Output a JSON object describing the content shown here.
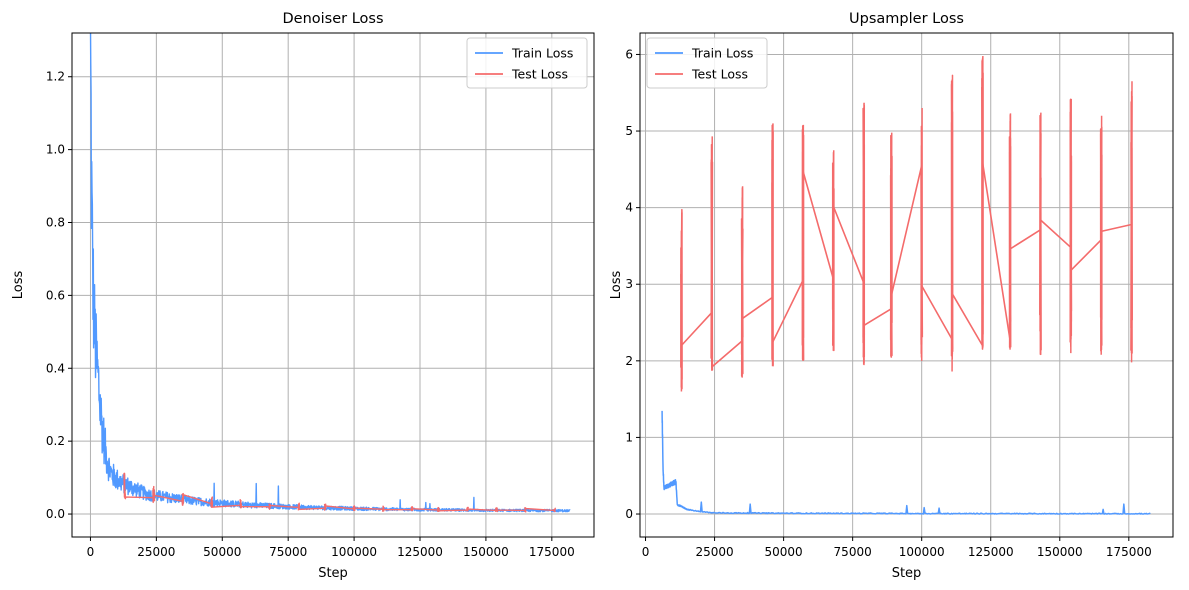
{
  "colors": {
    "train": "#5199ff",
    "test": "#f46b6b",
    "grid": "#b0b0b0"
  },
  "chart_data": [
    {
      "type": "line",
      "title": "Denoiser Loss",
      "xlabel": "Step",
      "ylabel": "Loss",
      "xlim": [
        -7000,
        191000
      ],
      "ylim": [
        -0.063,
        1.32
      ],
      "xticks": [
        0,
        25000,
        50000,
        75000,
        100000,
        125000,
        150000,
        175000
      ],
      "xtick_labels": [
        "0",
        "25000",
        "50000",
        "75000",
        "100000",
        "125000",
        "150000",
        "175000"
      ],
      "yticks": [
        0.0,
        0.2,
        0.4,
        0.6,
        0.8,
        1.0,
        1.2
      ],
      "ytick_labels": [
        "0.0",
        "0.2",
        "0.4",
        "0.6",
        "0.8",
        "1.0",
        "1.2"
      ],
      "grid": true,
      "legend": "top-right",
      "series": [
        {
          "name": "Train Loss",
          "color": "#5199ff",
          "x": [
            0,
            300,
            600,
            1000,
            1500,
            2000,
            3000,
            4000,
            5000,
            6000,
            7000,
            8000,
            10000,
            12000,
            15000,
            18000,
            21000,
            25000,
            30000,
            35000,
            40000,
            50000,
            60000,
            75000,
            90000,
            100000,
            115000,
            125000,
            140000,
            150000,
            165000,
            182000
          ],
          "y": [
            1.25,
            1.0,
            0.78,
            0.62,
            0.52,
            0.45,
            0.36,
            0.27,
            0.21,
            0.16,
            0.13,
            0.11,
            0.095,
            0.085,
            0.075,
            0.065,
            0.055,
            0.05,
            0.045,
            0.04,
            0.035,
            0.03,
            0.025,
            0.02,
            0.017,
            0.015,
            0.013,
            0.012,
            0.011,
            0.01,
            0.01,
            0.009
          ]
        },
        {
          "name": "Test Loss",
          "color": "#f46b6b",
          "x": [
            13000,
            24000,
            35000,
            46000,
            57000,
            68000,
            79000,
            89000,
            100000,
            111000,
            122000,
            132000,
            143000,
            154000,
            165000,
            176000
          ],
          "y": [
            0.07,
            0.045,
            0.035,
            0.028,
            0.024,
            0.02,
            0.018,
            0.016,
            0.014,
            0.013,
            0.012,
            0.011,
            0.011,
            0.01,
            0.01,
            0.01
          ]
        }
      ]
    },
    {
      "type": "line",
      "title": "Upsampler Loss",
      "xlabel": "Step",
      "ylabel": "Loss",
      "xlim": [
        -2000,
        191000
      ],
      "ylim": [
        -0.3,
        6.28
      ],
      "xticks": [
        0,
        25000,
        50000,
        75000,
        100000,
        125000,
        150000,
        175000
      ],
      "xtick_labels": [
        "0",
        "25000",
        "50000",
        "75000",
        "100000",
        "125000",
        "150000",
        "175000"
      ],
      "yticks": [
        0,
        1,
        2,
        3,
        4,
        5,
        6
      ],
      "ytick_labels": [
        "0",
        "1",
        "2",
        "3",
        "4",
        "5",
        "6"
      ],
      "grid": true,
      "legend": "top-left",
      "series": [
        {
          "name": "Train Loss",
          "color": "#5199ff",
          "x": [
            6000,
            6300,
            6700,
            7200,
            11000,
            11500,
            13000,
            15000,
            20000,
            25000,
            50000,
            75000,
            100000,
            125000,
            150000,
            183000
          ],
          "y": [
            1.33,
            0.65,
            0.33,
            0.35,
            0.42,
            0.12,
            0.1,
            0.06,
            0.03,
            0.015,
            0.01,
            0.008,
            0.006,
            0.005,
            0.004,
            0.003
          ]
        },
        {
          "name": "Test Loss",
          "color": "#f46b6b",
          "bursts": [
            {
              "x": 13000,
              "min": 1.6,
              "max": 3.98
            },
            {
              "x": 24000,
              "min": 1.87,
              "max": 4.93
            },
            {
              "x": 35000,
              "min": 1.78,
              "max": 4.28
            },
            {
              "x": 46000,
              "min": 1.93,
              "max": 5.1
            },
            {
              "x": 57000,
              "min": 2.0,
              "max": 5.08
            },
            {
              "x": 68000,
              "min": 2.13,
              "max": 4.75
            },
            {
              "x": 79000,
              "min": 1.95,
              "max": 5.37
            },
            {
              "x": 89000,
              "min": 2.04,
              "max": 4.98
            },
            {
              "x": 100000,
              "min": 2.0,
              "max": 5.3
            },
            {
              "x": 111000,
              "min": 1.86,
              "max": 5.73
            },
            {
              "x": 122000,
              "min": 2.15,
              "max": 5.98
            },
            {
              "x": 132000,
              "min": 2.15,
              "max": 5.23
            },
            {
              "x": 143000,
              "min": 2.08,
              "max": 5.24
            },
            {
              "x": 154000,
              "min": 2.1,
              "max": 5.42
            },
            {
              "x": 165000,
              "min": 2.08,
              "max": 5.2
            },
            {
              "x": 176000,
              "min": 1.98,
              "max": 5.65
            }
          ],
          "x": [
            13000,
            13000,
            24000,
            24000,
            35000,
            35000,
            46000,
            46000,
            57000,
            57000,
            68000,
            68000,
            79000,
            79000,
            89000,
            89000,
            100000,
            100000,
            111000,
            111000,
            122000,
            122000,
            132000,
            132000,
            143000,
            143000,
            154000,
            154000,
            165000,
            165000,
            176000
          ],
          "y": [
            3.7,
            2.2,
            2.63,
            1.92,
            2.26,
            2.55,
            2.83,
            2.24,
            3.05,
            4.48,
            3.07,
            4.02,
            3.02,
            2.46,
            2.68,
            2.85,
            4.55,
            2.98,
            2.28,
            2.88,
            2.2,
            4.6,
            2.27,
            3.46,
            3.71,
            3.84,
            3.48,
            3.18,
            3.58,
            3.69,
            3.78
          ]
        }
      ]
    }
  ]
}
